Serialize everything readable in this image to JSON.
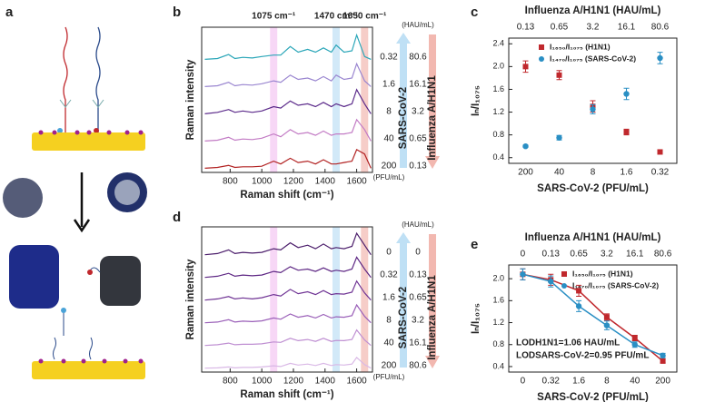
{
  "schematic": {
    "label": "a"
  },
  "chart_data": [
    {
      "type": "spectra",
      "panel": "b",
      "ylabel": "Raman intensity",
      "xlabel": "Raman shift (cm⁻¹)",
      "xlim": [
        620,
        1700
      ],
      "xticks": [
        800,
        1000,
        1200,
        1400,
        1600
      ],
      "peaks": [
        {
          "value": 1075,
          "label": "1075 cm⁻¹",
          "color": "#a12ab5",
          "band": "#f3c6f2"
        },
        {
          "value": 1470,
          "label": "1470 cm⁻¹",
          "color": "#3ea2d8",
          "band": "#bfe0f5"
        },
        {
          "value": 1650,
          "label": "1650 cm⁻¹",
          "color": "#c8282d",
          "band": "#f2b8b0"
        }
      ],
      "x": [
        640,
        720,
        790,
        830,
        880,
        940,
        1000,
        1075,
        1120,
        1180,
        1230,
        1290,
        1340,
        1390,
        1440,
        1470,
        1520,
        1570,
        1600,
        1650,
        1690
      ],
      "series": [
        {
          "color": "#2aa6b8",
          "values": [
            0.05,
            0.08,
            0.22,
            0.08,
            0.12,
            0.1,
            0.15,
            0.2,
            0.2,
            0.5,
            0.3,
            0.4,
            0.3,
            0.45,
            0.3,
            0.55,
            0.3,
            0.35,
            0.9,
            0.15,
            0.05
          ]
        },
        {
          "color": "#9a86d0",
          "values": [
            0.05,
            0.08,
            0.2,
            0.08,
            0.12,
            0.1,
            0.15,
            0.25,
            0.2,
            0.45,
            0.3,
            0.35,
            0.25,
            0.4,
            0.25,
            0.45,
            0.3,
            0.35,
            0.85,
            0.25,
            0.05
          ]
        },
        {
          "color": "#5b2a8a",
          "values": [
            0.05,
            0.1,
            0.2,
            0.1,
            0.15,
            0.1,
            0.15,
            0.3,
            0.25,
            0.5,
            0.35,
            0.4,
            0.3,
            0.45,
            0.3,
            0.4,
            0.3,
            0.4,
            0.9,
            0.4,
            0.05
          ]
        },
        {
          "color": "#c27ac4",
          "values": [
            0.05,
            0.08,
            0.18,
            0.08,
            0.12,
            0.1,
            0.15,
            0.3,
            0.2,
            0.45,
            0.3,
            0.35,
            0.25,
            0.4,
            0.25,
            0.3,
            0.3,
            0.35,
            0.8,
            0.45,
            0.05
          ]
        },
        {
          "color": "#b22222",
          "values": [
            0.05,
            0.08,
            0.15,
            0.08,
            0.1,
            0.1,
            0.12,
            0.3,
            0.2,
            0.4,
            0.25,
            0.3,
            0.2,
            0.35,
            0.2,
            0.2,
            0.25,
            0.3,
            0.7,
            0.55,
            0.05
          ]
        }
      ],
      "sars_title": "SARS-CoV-2",
      "flu_title": "Influenza A/H1N1",
      "sars_labels": [
        "0.32",
        "1.6",
        "8",
        "40",
        "200"
      ],
      "flu_labels": [
        "80.6",
        "16.1",
        "3.2",
        "0.65",
        "0.13"
      ],
      "sars_unit": "(PFU/mL)",
      "flu_unit": "(HAU/mL)"
    },
    {
      "type": "scatter",
      "panel": "c",
      "top_title": "Influenza A/H1N1 (HAU/mL)",
      "xlabel": "SARS-CoV-2 (PFU/mL)",
      "ylabel": "Iₙ/I₁₀₇₅",
      "categories": [
        "200",
        "40",
        "8",
        "1.6",
        "0.32"
      ],
      "top_categories": [
        "0.13",
        "0.65",
        "3.2",
        "16.1",
        "80.6"
      ],
      "ylim": [
        0.3,
        2.5
      ],
      "yticks": [
        0.4,
        0.8,
        1.2,
        1.6,
        {
          "value": 2,
          "label": "2.0"
        },
        2.4
      ],
      "series": [
        {
          "name": "I₁₆₅₀/I₁₀₇₅ (H1N1)",
          "color": "#c0282d",
          "marker": "square",
          "values": [
            2.0,
            1.85,
            1.3,
            0.85,
            0.5
          ],
          "errors": [
            0.1,
            0.08,
            0.1,
            0.05,
            0.03
          ]
        },
        {
          "name": "I₁₄₇₀/I₁₀₇₅ (SARS-CoV-2)",
          "color": "#2a8fc4",
          "marker": "circle",
          "values": [
            0.6,
            0.75,
            1.25,
            1.52,
            2.15
          ],
          "errors": [
            0.02,
            0.04,
            0.08,
            0.1,
            0.1
          ]
        }
      ]
    },
    {
      "type": "spectra",
      "panel": "d",
      "ylabel": "Raman intensity",
      "xlabel": "Raman shift (cm⁻¹)",
      "xlim": [
        620,
        1700
      ],
      "xticks": [
        800,
        1000,
        1200,
        1400,
        1600
      ],
      "peaks": [
        {
          "value": 1075,
          "band": "#f3c6f2"
        },
        {
          "value": 1470,
          "band": "#bfe0f5"
        },
        {
          "value": 1650,
          "band": "#f2b8b0"
        }
      ],
      "x": [
        640,
        720,
        790,
        830,
        880,
        940,
        1000,
        1075,
        1120,
        1180,
        1230,
        1290,
        1340,
        1390,
        1440,
        1470,
        1520,
        1570,
        1600,
        1650,
        1690
      ],
      "series": [
        {
          "color": "#4b1d6b",
          "values": [
            0.05,
            0.1,
            0.25,
            0.1,
            0.15,
            0.12,
            0.15,
            0.3,
            0.25,
            0.55,
            0.35,
            0.45,
            0.3,
            0.5,
            0.3,
            0.35,
            0.3,
            0.4,
            0.95,
            0.45,
            0.05
          ]
        },
        {
          "color": "#5e2784",
          "values": [
            0.05,
            0.1,
            0.22,
            0.1,
            0.15,
            0.12,
            0.15,
            0.3,
            0.25,
            0.5,
            0.35,
            0.4,
            0.3,
            0.45,
            0.3,
            0.35,
            0.3,
            0.4,
            0.9,
            0.4,
            0.05
          ]
        },
        {
          "color": "#6f3394",
          "values": [
            0.05,
            0.1,
            0.2,
            0.1,
            0.14,
            0.1,
            0.15,
            0.28,
            0.22,
            0.5,
            0.32,
            0.4,
            0.28,
            0.45,
            0.28,
            0.32,
            0.3,
            0.38,
            0.85,
            0.35,
            0.05
          ]
        },
        {
          "color": "#9a5fb8",
          "values": [
            0.05,
            0.08,
            0.18,
            0.08,
            0.12,
            0.1,
            0.13,
            0.25,
            0.2,
            0.42,
            0.28,
            0.35,
            0.25,
            0.4,
            0.25,
            0.3,
            0.28,
            0.35,
            0.8,
            0.32,
            0.05
          ]
        },
        {
          "color": "#bf8fd2",
          "values": [
            0.05,
            0.08,
            0.15,
            0.08,
            0.1,
            0.1,
            0.12,
            0.2,
            0.18,
            0.35,
            0.25,
            0.3,
            0.22,
            0.35,
            0.22,
            0.26,
            0.25,
            0.3,
            0.7,
            0.28,
            0.05
          ]
        },
        {
          "color": "#d9b8e6",
          "values": [
            0.05,
            0.06,
            0.1,
            0.06,
            0.08,
            0.08,
            0.1,
            0.15,
            0.12,
            0.25,
            0.18,
            0.22,
            0.16,
            0.25,
            0.16,
            0.2,
            0.18,
            0.22,
            0.5,
            0.2,
            0.05
          ]
        }
      ],
      "sars_title": "SARS-CoV-2",
      "flu_title": "Influenza A/H1N1",
      "sars_labels": [
        "0",
        "0.32",
        "1.6",
        "8",
        "40",
        "200"
      ],
      "flu_labels": [
        "0",
        "0.13",
        "0.65",
        "3.2",
        "16.1",
        "80.6"
      ],
      "sars_unit": "(PFU/mL)",
      "flu_unit": "(HAU/mL)"
    },
    {
      "type": "line",
      "panel": "e",
      "top_title": "Influenza A/H1N1 (HAU/mL)",
      "xlabel": "SARS-CoV-2 (PFU/mL)",
      "ylabel": "Iₙ/I₁₀₇₅",
      "categories": [
        "0",
        "0.32",
        "1.6",
        "8",
        "40",
        "200"
      ],
      "top_categories": [
        "0",
        "0.13",
        "0.65",
        "3.2",
        "16.1",
        "80.6"
      ],
      "ylim": [
        0.3,
        2.25
      ],
      "yticks": [
        0.4,
        0.8,
        1.2,
        1.6,
        {
          "value": 2,
          "label": "2.0"
        }
      ],
      "series": [
        {
          "name": "I₁₆₅₀/I₁₀₇₅ (H1N1)",
          "color": "#c0282d",
          "marker": "square",
          "values": [
            2.08,
            1.98,
            1.78,
            1.3,
            0.92,
            0.5
          ],
          "errors": [
            0.1,
            0.1,
            0.1,
            0.06,
            0.05,
            0.03
          ]
        },
        {
          "name": "I₁₄₇₀/I₁₀₇₅ (SARS-CoV-2)",
          "color": "#2a8fc4",
          "marker": "circle",
          "values": [
            2.08,
            1.95,
            1.5,
            1.15,
            0.8,
            0.6
          ],
          "errors": [
            0.1,
            0.1,
            0.1,
            0.08,
            0.05,
            0.04
          ]
        }
      ],
      "annotations": [
        {
          "text": "LODH1N1=1.06 HAU/mL",
          "color": "#c0282d"
        },
        {
          "text": "LODSARS-CoV-2=0.95 PFU/mL",
          "color": "#2a8fc4"
        }
      ]
    }
  ]
}
